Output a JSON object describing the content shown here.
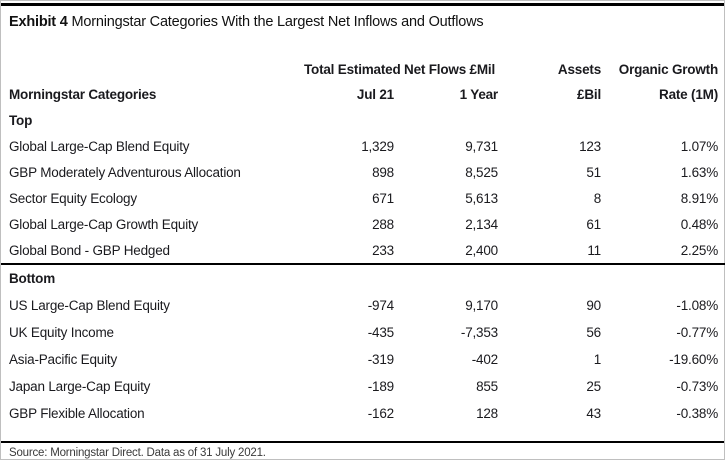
{
  "title": {
    "prefix": "Exhibit 4",
    "rest": "Morningstar Categories With the Largest Net Inflows and Outflows"
  },
  "table": {
    "group_headers": {
      "net_flows": "Total Estimated Net Flows £Mil",
      "assets_line1": "Assets",
      "growth_line1": "Organic Growth"
    },
    "columns": [
      "Morningstar Categories",
      "Jul 21",
      "1 Year",
      "£Bil",
      "Rate (1M)"
    ],
    "sections": [
      {
        "label": "Top",
        "rows": [
          [
            "Global Large-Cap Blend Equity",
            "1,329",
            "9,731",
            "123",
            "1.07%"
          ],
          [
            "GBP Moderately Adventurous Allocation",
            "898",
            "8,525",
            "51",
            "1.63%"
          ],
          [
            "Sector Equity Ecology",
            "671",
            "5,613",
            "8",
            "8.91%"
          ],
          [
            "Global Large-Cap Growth Equity",
            "288",
            "2,134",
            "61",
            "0.48%"
          ],
          [
            "Global Bond - GBP Hedged",
            "233",
            "2,400",
            "11",
            "2.25%"
          ]
        ]
      },
      {
        "label": "Bottom",
        "rows": [
          [
            "US Large-Cap Blend Equity",
            "-974",
            "9,170",
            "90",
            "-1.08%"
          ],
          [
            "UK Equity Income",
            "-435",
            "-7,353",
            "56",
            "-0.77%"
          ],
          [
            "Asia-Pacific Equity",
            "-319",
            "-402",
            "1",
            "-19.60%"
          ],
          [
            "Japan Large-Cap Equity",
            "-189",
            "855",
            "25",
            "-0.73%"
          ],
          [
            "GBP Flexible Allocation",
            "-162",
            "128",
            "43",
            "-0.38%"
          ]
        ]
      }
    ]
  },
  "footer": {
    "source": "Source: Morningstar Direct. Data as of 31 July 2021."
  }
}
